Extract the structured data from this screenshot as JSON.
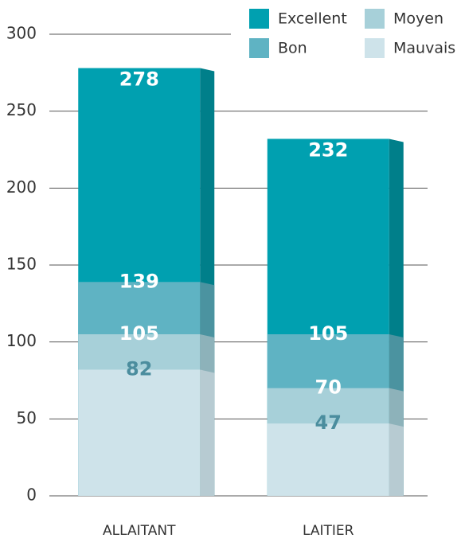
{
  "chart_data": {
    "type": "bar",
    "overlap": true,
    "categories": [
      "ALLAITANT",
      "LAITIER"
    ],
    "series": [
      {
        "name": "Excellent",
        "color": "#00a0b0",
        "side_color": "#007f8a",
        "label_color": "#ffffff",
        "values": [
          278,
          232
        ]
      },
      {
        "name": "Bon",
        "color": "#5fb3c3",
        "side_color": "#4b93a0",
        "label_color": "#ffffff",
        "values": [
          139,
          105
        ]
      },
      {
        "name": "Moyen",
        "color": "#a7d0d9",
        "side_color": "#8db2ba",
        "label_color": "#ffffff",
        "values": [
          105,
          70
        ]
      },
      {
        "name": "Mauvais",
        "color": "#cee3ea",
        "side_color": "#b7cbd2",
        "label_color": "#4b8d9e",
        "values": [
          82,
          47
        ]
      }
    ],
    "ylim": [
      0,
      300
    ],
    "yticks": [
      0,
      50,
      100,
      150,
      200,
      250,
      300
    ],
    "grid": true,
    "legend": "top-right"
  }
}
